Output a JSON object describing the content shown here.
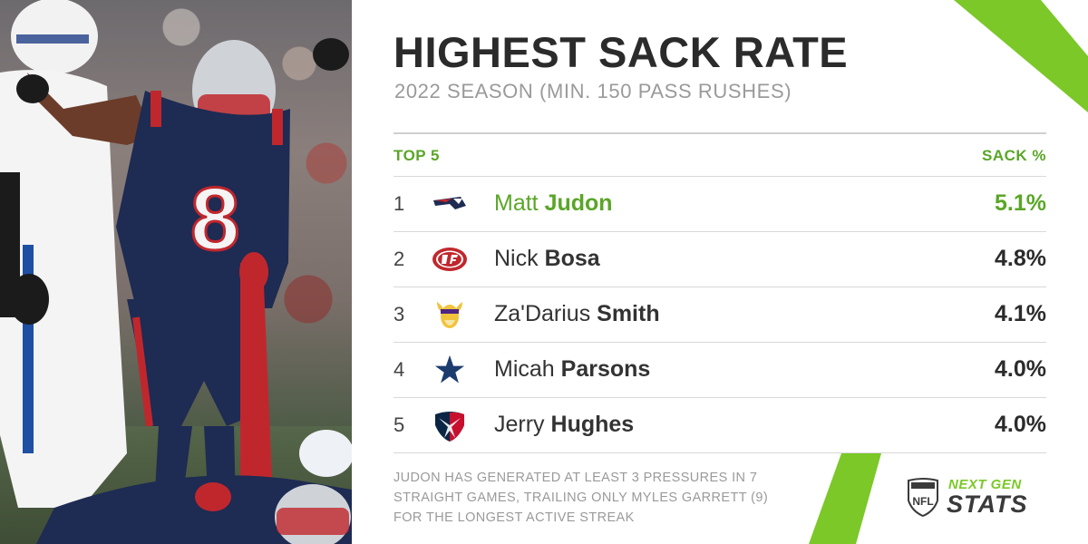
{
  "header": {
    "title": "HIGHEST SACK RATE",
    "subtitle": "2022 SEASON (MIN. 150 PASS RUSHES)"
  },
  "table": {
    "left_header": "TOP 5",
    "right_header": "SACK %",
    "rows": [
      {
        "rank": "1",
        "first": "Matt",
        "last": "Judon",
        "value": "5.1%",
        "team_icon": "patriots-logo-icon",
        "highlight": true
      },
      {
        "rank": "2",
        "first": "Nick",
        "last": "Bosa",
        "value": "4.8%",
        "team_icon": "49ers-logo-icon",
        "highlight": false
      },
      {
        "rank": "3",
        "first": "Za'Darius",
        "last": "Smith",
        "value": "4.1%",
        "team_icon": "vikings-logo-icon",
        "highlight": false
      },
      {
        "rank": "4",
        "first": "Micah",
        "last": "Parsons",
        "value": "4.0%",
        "team_icon": "cowboys-logo-icon",
        "highlight": false
      },
      {
        "rank": "5",
        "first": "Jerry",
        "last": "Hughes",
        "value": "4.0%",
        "team_icon": "texans-logo-icon",
        "highlight": false
      }
    ]
  },
  "footnote": "JUDON HAS GENERATED AT LEAST 3 PRESSURES IN 7 STRAIGHT GAMES, TRAILING ONLY MYLES GARRETT (9) FOR THE LONGEST ACTIVE STREAK",
  "brand": {
    "line1": "NEXT GEN",
    "line2": "STATS",
    "shield_text": "NFL"
  },
  "photo": {
    "jersey_number": "8"
  },
  "colors": {
    "accent_green": "#5aa628",
    "title_dark": "#2b2b2b",
    "muted_gray": "#9a9a9a"
  }
}
